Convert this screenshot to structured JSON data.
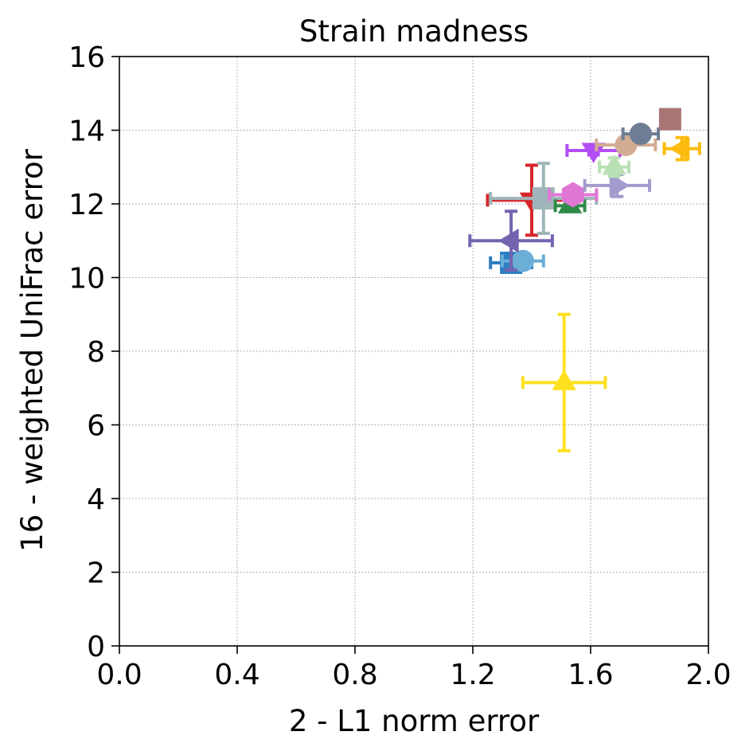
{
  "chart_data": {
    "type": "scatter",
    "title": "Strain madness",
    "xlabel": "2 - L1 norm error",
    "ylabel": "16 - weighted UniFrac error",
    "xlim": [
      0.0,
      2.0
    ],
    "ylim": [
      0,
      16
    ],
    "xticks": [
      "0.0",
      "0.4",
      "0.8",
      "1.2",
      "1.6",
      "2.0"
    ],
    "yticks": [
      "0",
      "2",
      "4",
      "6",
      "8",
      "10",
      "12",
      "14",
      "16"
    ],
    "grid": true,
    "points": [
      {
        "x": 1.51,
        "y": 7.15,
        "xerr": 0.14,
        "yerr": 1.85,
        "marker": "triangle-up",
        "color": "#FDE11F"
      },
      {
        "x": 1.33,
        "y": 10.4,
        "xerr": 0.07,
        "yerr": 0.15,
        "marker": "square",
        "color": "#2E7EC2"
      },
      {
        "x": 1.37,
        "y": 10.45,
        "xerr": 0.07,
        "yerr": 0.15,
        "marker": "circle",
        "color": "#6BAED6"
      },
      {
        "x": 1.33,
        "y": 11.0,
        "xerr": 0.14,
        "yerr": 0.8,
        "marker": "triangle-left",
        "color": "#7563B0"
      },
      {
        "x": 1.4,
        "y": 12.1,
        "xerr": 0.15,
        "yerr": 0.95,
        "marker": "triangle-down",
        "color": "#D6262B"
      },
      {
        "x": 1.44,
        "y": 12.15,
        "xerr": 0.18,
        "yerr": 0.95,
        "marker": "square",
        "color": "#9FB5B9"
      },
      {
        "x": 1.53,
        "y": 11.95,
        "xerr": 0.05,
        "yerr": 0.1,
        "marker": "triangle-up",
        "color": "#2E8B47"
      },
      {
        "x": 1.54,
        "y": 12.25,
        "xerr": 0.08,
        "yerr": 0.15,
        "marker": "hexagon",
        "color": "#E076D4"
      },
      {
        "x": 1.69,
        "y": 12.5,
        "xerr": 0.11,
        "yerr": 0.3,
        "marker": "triangle-right",
        "color": "#A29BCC"
      },
      {
        "x": 1.68,
        "y": 13.0,
        "xerr": 0.05,
        "yerr": 0.25,
        "marker": "triangle-up",
        "color": "#B9E0B4"
      },
      {
        "x": 1.61,
        "y": 13.45,
        "xerr": 0.09,
        "yerr": 0.12,
        "marker": "triangle-down",
        "color": "#B24DF5"
      },
      {
        "x": 1.72,
        "y": 13.6,
        "xerr": 0.1,
        "yerr": 0.15,
        "marker": "circle",
        "color": "#D3AB92"
      },
      {
        "x": 1.77,
        "y": 13.9,
        "xerr": 0.06,
        "yerr": 0.1,
        "marker": "circle",
        "color": "#6E7D95"
      },
      {
        "x": 1.87,
        "y": 14.3,
        "xerr": 0.03,
        "yerr": 0.1,
        "marker": "square",
        "color": "#A97575"
      },
      {
        "x": 1.91,
        "y": 13.5,
        "xerr": 0.06,
        "yerr": 0.3,
        "marker": "triangle-left",
        "color": "#FDBB0D"
      }
    ]
  }
}
